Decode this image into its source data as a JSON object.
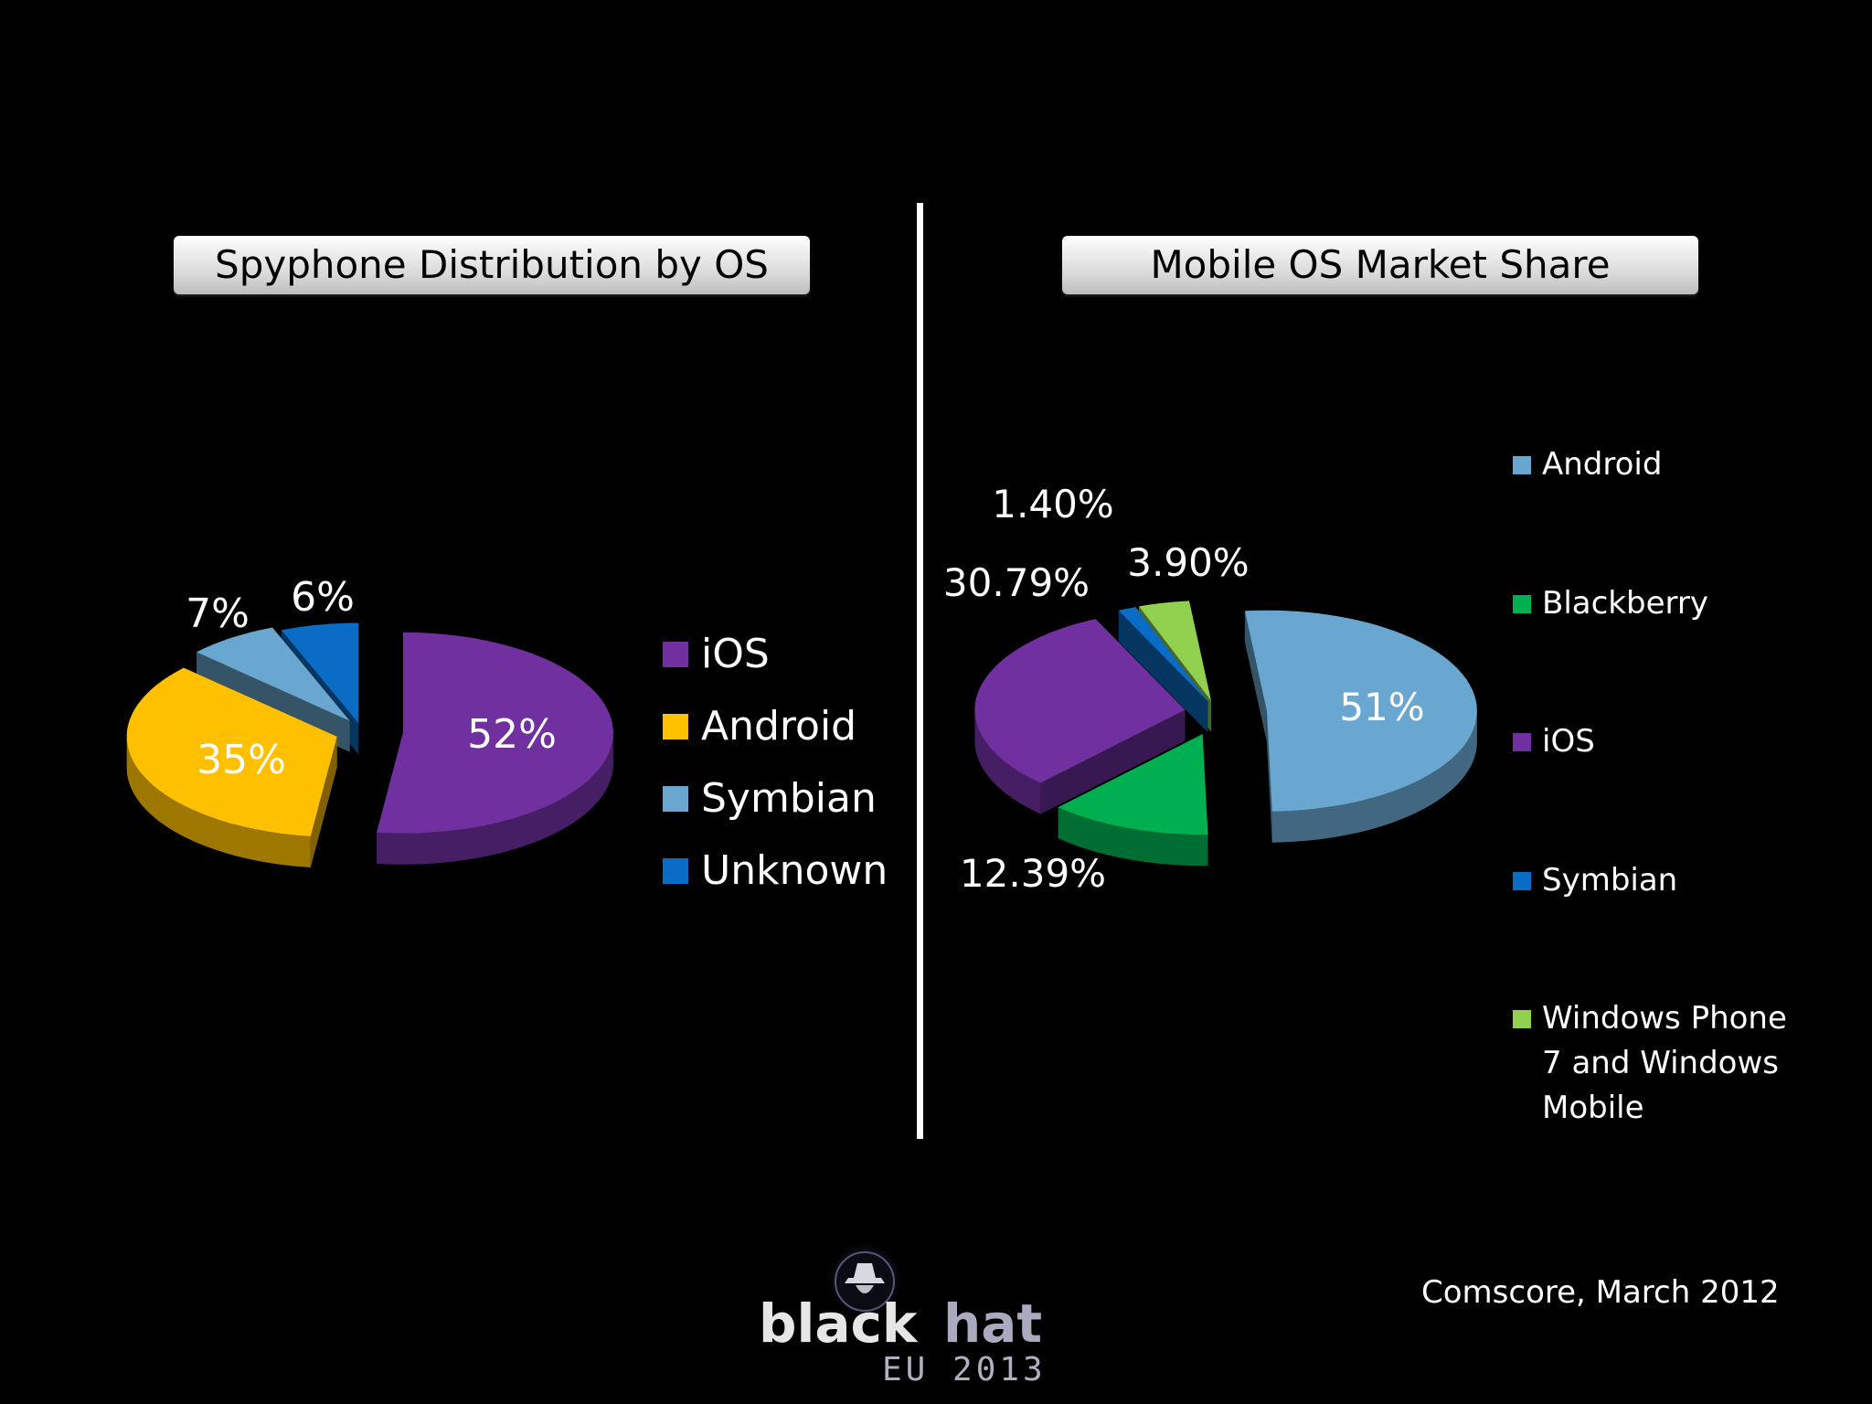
{
  "colors": {
    "purple": "#7030a0",
    "yellow": "#ffc000",
    "lightblue": "#6aa7d0",
    "blue": "#0a6cc4",
    "green": "#00b050",
    "lime": "#92d050"
  },
  "chart_data": [
    {
      "type": "pie",
      "title": "Spyphone Distribution by OS",
      "categories": [
        "iOS",
        "Android",
        "Symbian",
        "Unknown"
      ],
      "values": [
        52,
        35,
        7,
        6
      ],
      "labels": [
        "52%",
        "35%",
        "7%",
        "6%"
      ],
      "legend": "right",
      "exploded": true,
      "style": "3d"
    },
    {
      "type": "pie",
      "title": "Mobile OS  Market Share",
      "categories": [
        "Android",
        "Blackberry",
        "iOS",
        "Symbian",
        "Windows Phone 7 and Windows Mobile"
      ],
      "values": [
        51,
        12.39,
        30.79,
        1.4,
        3.9
      ],
      "labels": [
        "51%",
        "12.39%",
        "30.79%",
        "1.40%",
        "3.90%"
      ],
      "legend": "right",
      "exploded": true,
      "style": "3d"
    }
  ],
  "source": "Comscore, March 2012",
  "logo": {
    "word1": "black",
    "word2": "hat",
    "event": "EU 2013"
  }
}
